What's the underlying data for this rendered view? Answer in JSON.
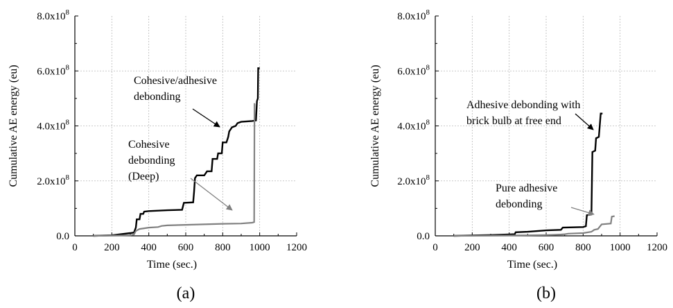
{
  "chart_data": [
    {
      "type": "line",
      "panel_label": "(a)",
      "xlabel": "Time (sec.)",
      "ylabel": "Cumulative AE energy (eu)",
      "xlim": [
        0,
        1200
      ],
      "ylim": [
        0,
        800000000.0
      ],
      "x_ticks": [
        0,
        200,
        400,
        600,
        800,
        1000,
        1200
      ],
      "x_tick_labels": [
        "0",
        "200",
        "400",
        "600",
        "800",
        "1000",
        "1200"
      ],
      "y_ticks": [
        0,
        200000000.0,
        400000000.0,
        600000000.0,
        800000000.0
      ],
      "y_tick_labels": [
        {
          "mant": "0.0",
          "exp": ""
        },
        {
          "mant": "2.0x10",
          "exp": "8"
        },
        {
          "mant": "4.0x10",
          "exp": "8"
        },
        {
          "mant": "6.0x10",
          "exp": "8"
        },
        {
          "mant": "8.0x10",
          "exp": "8"
        }
      ],
      "grid": true,
      "series": [
        {
          "color": "#000000",
          "points": [
            [
              100,
              0
            ],
            [
              200,
              2000000.0
            ],
            [
              300,
              10000000.0
            ],
            [
              320,
              12000000.0
            ],
            [
              330,
              30000000.0
            ],
            [
              335,
              60000000.0
            ],
            [
              350,
              60000000.0
            ],
            [
              355,
              80000000.0
            ],
            [
              370,
              80000000.0
            ],
            [
              375,
              88000000.0
            ],
            [
              400,
              90000000.0
            ],
            [
              500,
              93000000.0
            ],
            [
              580,
              95000000.0
            ],
            [
              590,
              120000000.0
            ],
            [
              640,
              122000000.0
            ],
            [
              645,
              160000000.0
            ],
            [
              650,
              210000000.0
            ],
            [
              660,
              220000000.0
            ],
            [
              700,
              220000000.0
            ],
            [
              715,
              235000000.0
            ],
            [
              740,
              235000000.0
            ],
            [
              745,
              280000000.0
            ],
            [
              770,
              280000000.0
            ],
            [
              775,
              300000000.0
            ],
            [
              795,
              300000000.0
            ],
            [
              800,
              340000000.0
            ],
            [
              820,
              340000000.0
            ],
            [
              830,
              360000000.0
            ],
            [
              835,
              380000000.0
            ],
            [
              850,
              395000000.0
            ],
            [
              870,
              400000000.0
            ],
            [
              880,
              410000000.0
            ],
            [
              900,
              415000000.0
            ],
            [
              960,
              418000000.0
            ],
            [
              980,
              420000000.0
            ],
            [
              985,
              490000000.0
            ],
            [
              990,
              500000000.0
            ],
            [
              992,
              610000000.0
            ],
            [
              1000,
              610000000.0
            ]
          ]
        },
        {
          "color": "#808080",
          "points": [
            [
              100,
              0
            ],
            [
              200,
              1000000.0
            ],
            [
              300,
              2000000.0
            ],
            [
              320,
              5000000.0
            ],
            [
              330,
              18000000.0
            ],
            [
              350,
              25000000.0
            ],
            [
              400,
              30000000.0
            ],
            [
              450,
              32000000.0
            ],
            [
              470,
              36000000.0
            ],
            [
              500,
              38000000.0
            ],
            [
              600,
              40000000.0
            ],
            [
              700,
              42000000.0
            ],
            [
              800,
              44000000.0
            ],
            [
              900,
              45000000.0
            ],
            [
              960,
              48000000.0
            ],
            [
              970,
              50000000.0
            ],
            [
              972,
              480000000.0
            ],
            [
              975,
              480000000.0
            ]
          ]
        }
      ],
      "annotations": [
        {
          "lines": [
            "Cohesive/adhesive",
            "debonding"
          ],
          "color": "#000000"
        },
        {
          "lines": [
            "Cohesive",
            "debonding",
            "(Deep)"
          ],
          "color": "#808080"
        }
      ]
    },
    {
      "type": "line",
      "panel_label": "(b)",
      "xlabel": "Time (sec.)",
      "ylabel": "Cumulative AE energy (eu)",
      "xlim": [
        0,
        1200
      ],
      "ylim": [
        0,
        800000000.0
      ],
      "x_ticks": [
        0,
        200,
        400,
        600,
        800,
        1000,
        1200
      ],
      "x_tick_labels": [
        "0",
        "200",
        "400",
        "600",
        "800",
        "1000",
        "1200"
      ],
      "y_ticks": [
        0,
        200000000.0,
        400000000.0,
        600000000.0,
        800000000.0
      ],
      "y_tick_labels": [
        {
          "mant": "0.0",
          "exp": ""
        },
        {
          "mant": "2.0x10",
          "exp": "8"
        },
        {
          "mant": "4.0x10",
          "exp": "8"
        },
        {
          "mant": "6.0x10",
          "exp": "8"
        },
        {
          "mant": "8.0x10",
          "exp": "8"
        }
      ],
      "grid": true,
      "series": [
        {
          "color": "#000000",
          "points": [
            [
              100,
              0
            ],
            [
              300,
              3000000.0
            ],
            [
              400,
              5000000.0
            ],
            [
              430,
              6000000.0
            ],
            [
              435,
              13000000.0
            ],
            [
              500,
              15000000.0
            ],
            [
              600,
              20000000.0
            ],
            [
              680,
              22000000.0
            ],
            [
              690,
              30000000.0
            ],
            [
              800,
              32000000.0
            ],
            [
              815,
              35000000.0
            ],
            [
              820,
              75000000.0
            ],
            [
              845,
              78000000.0
            ],
            [
              850,
              305000000.0
            ],
            [
              865,
              310000000.0
            ],
            [
              870,
              355000000.0
            ],
            [
              885,
              360000000.0
            ],
            [
              890,
              400000000.0
            ],
            [
              895,
              445000000.0
            ],
            [
              905,
              445000000.0
            ]
          ]
        },
        {
          "color": "#808080",
          "points": [
            [
              100,
              0
            ],
            [
              300,
              1000000.0
            ],
            [
              500,
              2000000.0
            ],
            [
              600,
              3000000.0
            ],
            [
              650,
              4000000.0
            ],
            [
              680,
              5000000.0
            ],
            [
              700,
              6000000.0
            ],
            [
              720,
              8000000.0
            ],
            [
              800,
              10000000.0
            ],
            [
              845,
              15000000.0
            ],
            [
              860,
              22000000.0
            ],
            [
              880,
              25000000.0
            ],
            [
              900,
              42000000.0
            ],
            [
              950,
              45000000.0
            ],
            [
              955,
              70000000.0
            ],
            [
              970,
              72000000.0
            ]
          ]
        }
      ],
      "annotations": [
        {
          "lines": [
            "Adhesive debonding with",
            "brick bulb at free end"
          ],
          "color": "#000000"
        },
        {
          "lines": [
            "Pure adhesive",
            "debonding"
          ],
          "color": "#808080"
        }
      ]
    }
  ]
}
